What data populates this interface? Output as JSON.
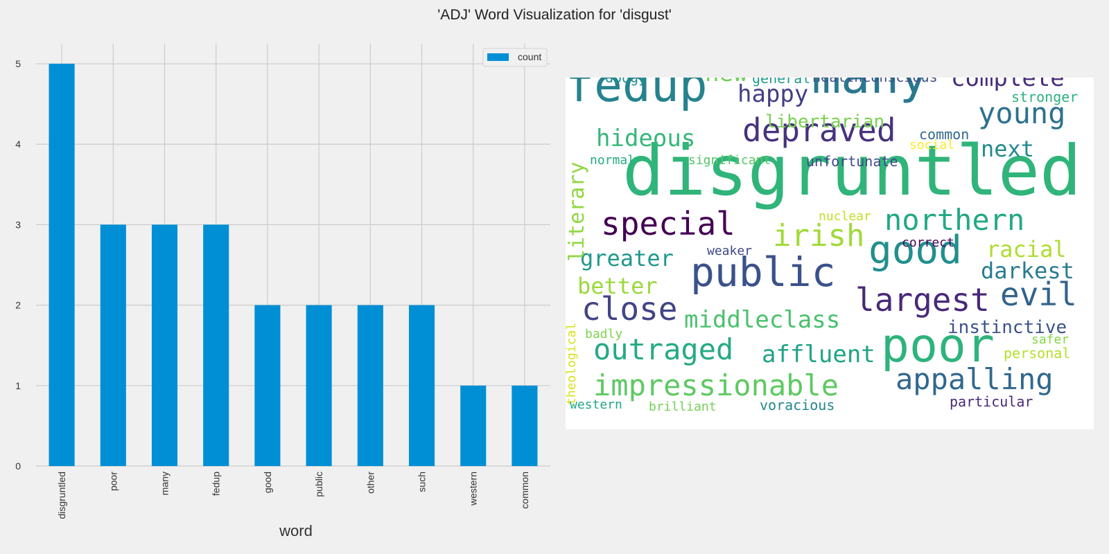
{
  "figure": {
    "suptitle": "'ADJ' Word Visualization for 'disgust'"
  },
  "chart_data": [
    {
      "type": "bar",
      "title": "",
      "xlabel": "word",
      "ylabel": "",
      "categories": [
        "disgruntled",
        "poor",
        "many",
        "fedup",
        "good",
        "public",
        "other",
        "such",
        "western",
        "common"
      ],
      "series": [
        {
          "name": "count",
          "values": [
            5,
            3,
            3,
            3,
            2,
            2,
            2,
            2,
            1,
            1
          ],
          "color": "#008fd5"
        }
      ],
      "ylim": [
        0,
        5.25
      ],
      "yticks": [
        0,
        1,
        2,
        3,
        4,
        5
      ],
      "grid": true,
      "legend": "top-right"
    },
    {
      "type": "wordcloud",
      "background": "#ffffff",
      "colormap": "viridis",
      "words": [
        {
          "text": "disgruntled",
          "color": "#30b47a"
        },
        {
          "text": "poor",
          "color": "#2eb37c"
        },
        {
          "text": "many",
          "color": "#2a788e"
        },
        {
          "text": "fedup",
          "color": "#26828e"
        },
        {
          "text": "public",
          "color": "#3b518b"
        },
        {
          "text": "good",
          "color": "#218f8d"
        },
        {
          "text": "depraved",
          "color": "#46327e"
        },
        {
          "text": "special",
          "color": "#440154"
        },
        {
          "text": "irish",
          "color": "#a0da39"
        },
        {
          "text": "northern",
          "color": "#22a884"
        },
        {
          "text": "close",
          "color": "#414487"
        },
        {
          "text": "largest",
          "color": "#482878"
        },
        {
          "text": "evil",
          "color": "#33638d"
        },
        {
          "text": "outraged",
          "color": "#25ab82"
        },
        {
          "text": "appalling",
          "color": "#31688e"
        },
        {
          "text": "impressionable",
          "color": "#5ec962"
        },
        {
          "text": "young",
          "color": "#2c728e"
        },
        {
          "text": "complete",
          "color": "#472d7b"
        },
        {
          "text": "hideous",
          "color": "#35b779"
        },
        {
          "text": "happy",
          "color": "#433e85"
        },
        {
          "text": "affluent",
          "color": "#20a386"
        },
        {
          "text": "middleclass",
          "color": "#4ac16d"
        },
        {
          "text": "greater",
          "color": "#1f988b"
        },
        {
          "text": "better",
          "color": "#9bd93c"
        },
        {
          "text": "racial",
          "color": "#addc30"
        },
        {
          "text": "darkest",
          "color": "#287c8e"
        },
        {
          "text": "next",
          "color": "#23898e"
        },
        {
          "text": "new",
          "color": "#6ece58"
        },
        {
          "text": "instinctive",
          "color": "#3b528b"
        },
        {
          "text": "libertarian",
          "color": "#7ad151"
        },
        {
          "text": "literary",
          "color": "#90d743"
        },
        {
          "text": "unfortunate",
          "color": "#3e4989"
        },
        {
          "text": "general",
          "color": "#1f9a8a"
        },
        {
          "text": "healthconscious",
          "color": "#3e4a89"
        },
        {
          "text": "dodgy",
          "color": "#21918c"
        },
        {
          "text": "stronger",
          "color": "#2db27d"
        },
        {
          "text": "common",
          "color": "#31688e"
        },
        {
          "text": "social",
          "color": "#fde725"
        },
        {
          "text": "normal",
          "color": "#26ad81"
        },
        {
          "text": "significant",
          "color": "#54c568"
        },
        {
          "text": "nuclear",
          "color": "#c0df25"
        },
        {
          "text": "correct",
          "color": "#440154"
        },
        {
          "text": "weaker",
          "color": "#3f4788"
        },
        {
          "text": "theological",
          "color": "#d8e219"
        },
        {
          "text": "badly",
          "color": "#7fd34e"
        },
        {
          "text": "safer",
          "color": "#86d549"
        },
        {
          "text": "personal",
          "color": "#b5de2b"
        },
        {
          "text": "western",
          "color": "#22a785"
        },
        {
          "text": "brilliant",
          "color": "#73d056"
        },
        {
          "text": "voracious",
          "color": "#25858e"
        },
        {
          "text": "particular",
          "color": "#482878"
        }
      ]
    }
  ]
}
